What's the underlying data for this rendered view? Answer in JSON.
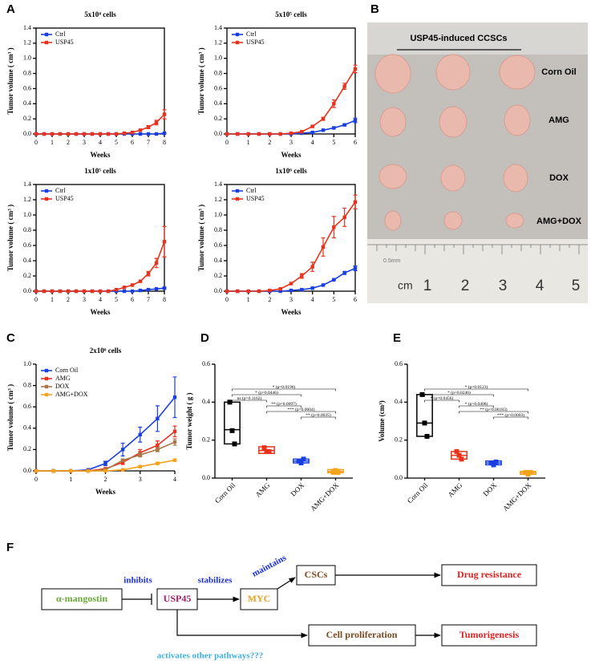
{
  "panels": [
    "A",
    "B",
    "C",
    "D",
    "E",
    "F"
  ],
  "chart_data": [
    {
      "type": "line",
      "title": "5x10⁴ cells",
      "xlabel": "Weeks",
      "ylabel": "Tumor volume ( cm³ )",
      "legend": "upper left",
      "x": [
        0,
        0.5,
        1,
        1.5,
        2,
        2.5,
        3,
        3.5,
        4,
        4.5,
        5,
        5.5,
        6,
        6.5,
        7,
        7.5,
        8
      ],
      "xlim": [
        0,
        8
      ],
      "xticks": [
        0,
        1,
        2,
        3,
        4,
        5,
        6,
        7,
        8
      ],
      "ylim": [
        0,
        1.4
      ],
      "yticks": [
        {
          "value": 0,
          "label": "0.0"
        },
        0.2,
        0.4,
        0.6,
        0.8,
        {
          "value": 1,
          "label": "1.0"
        },
        1.2,
        1.4
      ],
      "series": [
        {
          "name": "Ctrl",
          "color": "#1a3fe0",
          "values": [
            0,
            0,
            0,
            0,
            0,
            0,
            0,
            0,
            0,
            0,
            0,
            0,
            0,
            0,
            0,
            0,
            0.01
          ],
          "errors": [
            0,
            0,
            0,
            0,
            0,
            0,
            0,
            0,
            0,
            0,
            0,
            0,
            0,
            0,
            0,
            0,
            0
          ]
        },
        {
          "name": "USP45",
          "color": "#e8331c",
          "values": [
            0,
            0,
            0,
            0,
            0,
            0,
            0,
            0,
            0,
            0,
            0,
            0.01,
            0.02,
            0.05,
            0.09,
            0.15,
            0.26
          ],
          "errors": [
            0,
            0,
            0,
            0,
            0,
            0,
            0,
            0,
            0,
            0,
            0,
            0,
            0,
            0,
            0.02,
            0.03,
            0.06
          ]
        }
      ]
    },
    {
      "type": "line",
      "title": "5x10⁵ cells",
      "xlabel": "Weeks",
      "ylabel": "Tumor volume ( cm³ )",
      "legend": "upper left",
      "x": [
        0,
        0.5,
        1,
        1.5,
        2,
        2.5,
        3,
        3.5,
        4,
        4.5,
        5,
        5.5,
        6
      ],
      "xlim": [
        0,
        6
      ],
      "xticks": [
        0,
        1,
        2,
        3,
        4,
        5,
        6
      ],
      "ylim": [
        0,
        1.4
      ],
      "yticks": [
        {
          "value": 0,
          "label": "0.0"
        },
        0.2,
        0.4,
        0.6,
        0.8,
        {
          "value": 1,
          "label": "1.0"
        },
        1.2,
        1.4
      ],
      "series": [
        {
          "name": "Ctrl",
          "color": "#1a3fe0",
          "values": [
            0,
            0,
            0,
            0,
            0,
            0,
            0,
            0.01,
            0.02,
            0.05,
            0.08,
            0.12,
            0.18
          ],
          "errors": [
            0,
            0,
            0,
            0,
            0,
            0,
            0,
            0,
            0,
            0,
            0,
            0.01,
            0.03
          ]
        },
        {
          "name": "USP45",
          "color": "#e8331c",
          "values": [
            0,
            0,
            0,
            0,
            0,
            0,
            0.01,
            0.03,
            0.1,
            0.2,
            0.4,
            0.63,
            0.86
          ],
          "errors": [
            0,
            0,
            0,
            0,
            0,
            0,
            0,
            0,
            0,
            0.02,
            0.05,
            0.04,
            0.05
          ]
        }
      ]
    },
    {
      "type": "line",
      "title": "1x10⁵ cells",
      "xlabel": "Weeks",
      "ylabel": "Tumor volume ( cm³ )",
      "legend": "upper left",
      "x": [
        0,
        0.5,
        1,
        1.5,
        2,
        2.5,
        3,
        3.5,
        4,
        4.5,
        5,
        5.5,
        6,
        6.5,
        7,
        7.5,
        8
      ],
      "xlim": [
        0,
        8
      ],
      "xticks": [
        0,
        1,
        2,
        3,
        4,
        5,
        6,
        7,
        8
      ],
      "ylim": [
        0,
        1.4
      ],
      "yticks": [
        {
          "value": 0,
          "label": "0.0"
        },
        0.2,
        0.4,
        0.6,
        0.8,
        {
          "value": 1,
          "label": "1.0"
        },
        1.2,
        1.4
      ],
      "series": [
        {
          "name": "Ctrl",
          "color": "#1a3fe0",
          "values": [
            0,
            0,
            0,
            0,
            0,
            0,
            0,
            0,
            0,
            0,
            0,
            0,
            0,
            0.01,
            0.02,
            0.03,
            0.04
          ],
          "errors": [
            0,
            0,
            0,
            0,
            0,
            0,
            0,
            0,
            0,
            0,
            0,
            0,
            0,
            0,
            0,
            0,
            0.01
          ]
        },
        {
          "name": "USP45",
          "color": "#e8331c",
          "values": [
            0,
            0,
            0,
            0,
            0,
            0,
            0,
            0,
            0,
            0,
            0.02,
            0.05,
            0.08,
            0.13,
            0.23,
            0.37,
            0.65
          ],
          "errors": [
            0,
            0,
            0,
            0,
            0,
            0,
            0,
            0,
            0,
            0,
            0,
            0,
            0,
            0,
            0.03,
            0.06,
            0.2
          ]
        }
      ]
    },
    {
      "type": "line",
      "title": "1x10⁶ cells",
      "xlabel": "Weeks",
      "ylabel": "Tumor volume ( cm³ )",
      "legend": "upper left",
      "x": [
        0,
        0.5,
        1,
        1.5,
        2,
        2.5,
        3,
        3.5,
        4,
        4.5,
        5,
        5.5,
        6
      ],
      "xlim": [
        0,
        6
      ],
      "xticks": [
        0,
        1,
        2,
        3,
        4,
        5,
        6
      ],
      "ylim": [
        0,
        1.4
      ],
      "yticks": [
        {
          "value": 0,
          "label": "0.0"
        },
        0.2,
        0.4,
        0.6,
        0.8,
        {
          "value": 1,
          "label": "1.0"
        },
        1.2,
        1.4
      ],
      "series": [
        {
          "name": "Ctrl",
          "color": "#1a3fe0",
          "values": [
            0,
            0,
            0,
            0,
            0,
            0,
            0.01,
            0.02,
            0.04,
            0.08,
            0.15,
            0.24,
            0.3
          ],
          "errors": [
            0,
            0,
            0,
            0,
            0,
            0,
            0,
            0,
            0,
            0,
            0,
            0.02,
            0.03
          ]
        },
        {
          "name": "USP45",
          "color": "#e8331c",
          "values": [
            0,
            0,
            0,
            0,
            0.01,
            0.03,
            0.1,
            0.2,
            0.32,
            0.58,
            0.84,
            0.97,
            1.17
          ],
          "errors": [
            0,
            0,
            0,
            0,
            0,
            0,
            0,
            0.03,
            0.06,
            0.12,
            0.14,
            0.12,
            0.09
          ]
        }
      ]
    },
    {
      "type": "line",
      "title": "2x10⁶ cells",
      "xlabel": "Weeks",
      "ylabel": "Tumor volume ( cm³ )",
      "legend": "upper left",
      "x": [
        0,
        0.5,
        1,
        1.5,
        2,
        2.5,
        3,
        3.5,
        4
      ],
      "xlim": [
        0,
        4
      ],
      "xticks": [
        0,
        1,
        2,
        3,
        4
      ],
      "ylim": [
        0,
        1
      ],
      "yticks": [
        {
          "value": 0,
          "label": "0.0"
        },
        0.2,
        0.4,
        0.6,
        0.8,
        {
          "value": 1,
          "label": "1.0"
        }
      ],
      "series": [
        {
          "name": "Corn Oil",
          "color": "#1a3fe0",
          "values": [
            0,
            0,
            0,
            0.01,
            0.07,
            0.2,
            0.34,
            0.49,
            0.69
          ],
          "errors": [
            0,
            0,
            0,
            0,
            0.02,
            0.06,
            0.07,
            0.12,
            0.19
          ]
        },
        {
          "name": "AMG",
          "color": "#e8331c",
          "values": [
            0,
            0,
            0,
            0,
            0.02,
            0.08,
            0.17,
            0.24,
            0.37
          ],
          "errors": [
            0,
            0,
            0,
            0,
            0,
            0.02,
            0.03,
            0.04,
            0.05
          ]
        },
        {
          "name": "DOX",
          "color": "#a8784a",
          "values": [
            0,
            0,
            0,
            0,
            0.01,
            0.1,
            0.15,
            0.2,
            0.27
          ],
          "errors": [
            0,
            0,
            0,
            0,
            0,
            0.01,
            0.02,
            0.02,
            0.03
          ]
        },
        {
          "name": "AMG+DOX",
          "color": "#f5a21c",
          "values": [
            0,
            0,
            0,
            0,
            0,
            0.01,
            0.04,
            0.07,
            0.1
          ],
          "errors": [
            0,
            0,
            0,
            0,
            0,
            0,
            0.01,
            0.01,
            0.01
          ]
        }
      ]
    },
    {
      "type": "box",
      "ylabel": "Tumor weight ( g )",
      "categories": [
        "Corn Oil",
        "AMG",
        "DOX",
        "AMG+DOX"
      ],
      "ylim": [
        0,
        0.6
      ],
      "yticks": [
        {
          "value": 0,
          "label": "0.0"
        },
        0.2,
        0.4,
        0.6
      ],
      "boxes": [
        {
          "color": "#000000",
          "low": 0.18,
          "median": 0.255,
          "high": 0.4,
          "points": [
            0.4,
            0.25,
            0.18
          ]
        },
        {
          "color": "#e8331c",
          "low": 0.13,
          "median": 0.145,
          "high": 0.165,
          "points": [
            0.16,
            0.14,
            0.14
          ]
        },
        {
          "color": "#1a3fe0",
          "low": 0.08,
          "median": 0.09,
          "high": 0.1,
          "points": [
            0.09,
            0.08,
            0.1
          ]
        },
        {
          "color": "#f5a21c",
          "low": 0.028,
          "median": 0.035,
          "high": 0.045,
          "points": [
            0.03,
            0.04,
            0.03
          ]
        }
      ],
      "brackets": [
        {
          "groups": [
            "Corn Oil",
            "AMG+DOX"
          ],
          "label": "* (p=0.0196)"
        },
        {
          "groups": [
            "Corn Oil",
            "DOX"
          ],
          "label": "* (p=0.0446)"
        },
        {
          "groups": [
            "Corn Oil",
            "AMG"
          ],
          "label": "ns (p=0.1162)"
        },
        {
          "groups": [
            "AMG",
            "DOX"
          ],
          "label": "** (p=0.0097)"
        },
        {
          "groups": [
            "AMG",
            "AMG+DOX"
          ],
          "label": "*** (p=0.0004)"
        },
        {
          "groups": [
            "DOX",
            "AMG+DOX"
          ],
          "label": "** (p=0.0035)"
        }
      ]
    },
    {
      "type": "box",
      "ylabel": "Volume (cm³)",
      "categories": [
        "Corn Oil",
        "AMG",
        "DOX",
        "AMG+DOX"
      ],
      "ylim": [
        0,
        0.6
      ],
      "yticks": [
        {
          "value": 0,
          "label": "0.0"
        },
        0.2,
        0.4,
        0.6
      ],
      "boxes": [
        {
          "color": "#000000",
          "low": 0.22,
          "median": 0.29,
          "high": 0.44,
          "points": [
            0.44,
            0.29,
            0.22
          ]
        },
        {
          "color": "#e8331c",
          "low": 0.1,
          "median": 0.12,
          "high": 0.14,
          "points": [
            0.14,
            0.12,
            0.1
          ]
        },
        {
          "color": "#1a3fe0",
          "low": 0.07,
          "median": 0.08,
          "high": 0.09,
          "points": [
            0.08,
            0.07,
            0.085
          ]
        },
        {
          "color": "#f5a21c",
          "low": 0.02,
          "median": 0.028,
          "high": 0.035,
          "points": [
            0.03,
            0.02,
            0.03
          ]
        }
      ],
      "brackets": [
        {
          "groups": [
            "Corn Oil",
            "AMG+DOX"
          ],
          "label": "* (p=0.0123)"
        },
        {
          "groups": [
            "Corn Oil",
            "DOX"
          ],
          "label": "* (p=0.0246)"
        },
        {
          "groups": [
            "Corn Oil",
            "AMG"
          ],
          "label": "* (p=0.0456)"
        },
        {
          "groups": [
            "AMG",
            "DOX"
          ],
          "label": "* (p=0.0408)"
        },
        {
          "groups": [
            "AMG",
            "AMG+DOX"
          ],
          "label": "** (p=0.00183)"
        },
        {
          "groups": [
            "DOX",
            "AMG+DOX"
          ],
          "label": "*** (p=0.0003)"
        }
      ]
    }
  ],
  "photo": {
    "header": "USP45-induced CCSCs",
    "rows": [
      "Corn Oil",
      "AMG",
      "DOX",
      "AMG+DOX"
    ],
    "ruler": {
      "unit": "cm",
      "numbers": [
        "1",
        "2",
        "3",
        "4",
        "5"
      ],
      "note": "0.5mm"
    }
  },
  "diagram": {
    "nodes": [
      "α-mangostin",
      "USP45",
      "MYC",
      "CSCs",
      "Drug resistance",
      "Cell proliferation",
      "Tumorigenesis"
    ],
    "edges": [
      "inhibits",
      "stabilizes",
      "maintains",
      "activates other pathways???"
    ]
  }
}
